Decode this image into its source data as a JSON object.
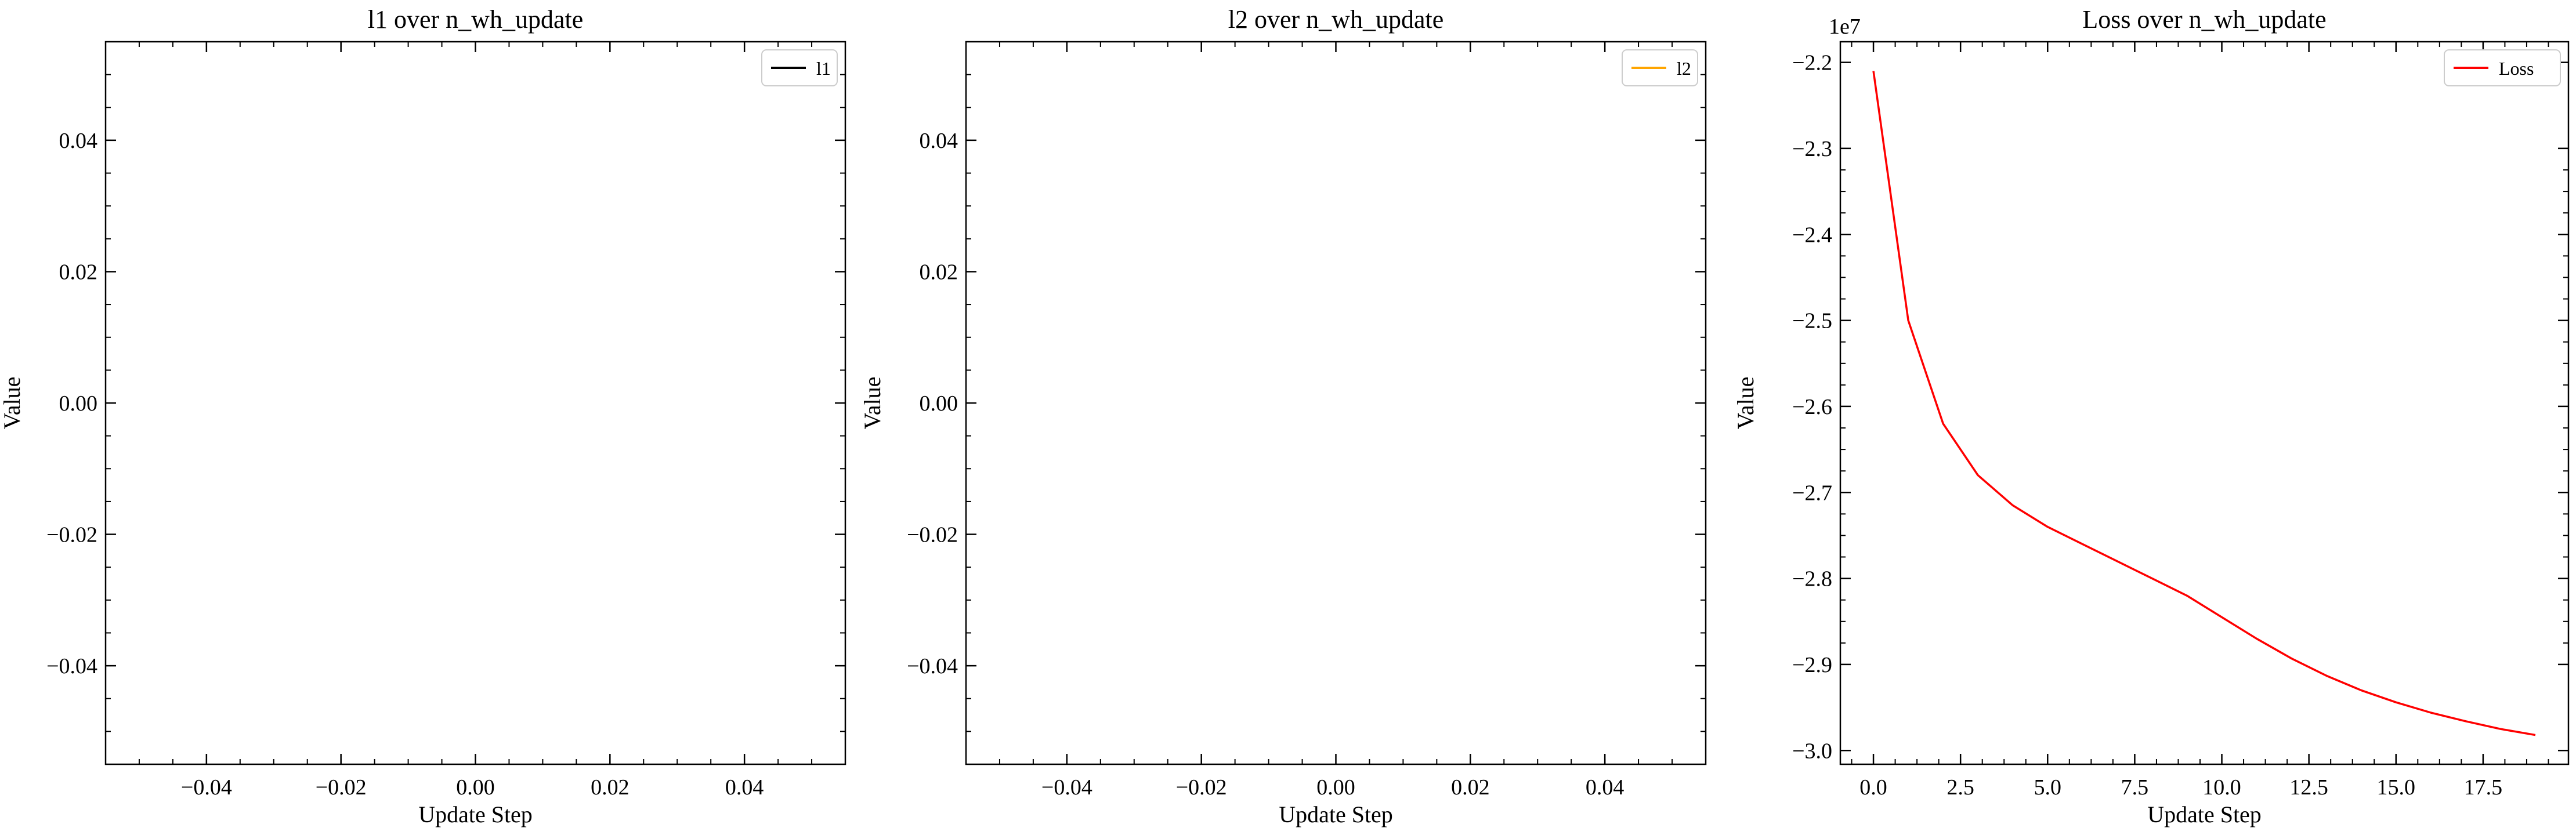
{
  "chart_data": [
    {
      "type": "line",
      "title": "l1 over n_wh_update",
      "xlabel": "Update Step",
      "ylabel": "Value",
      "xlim": [
        -0.055,
        0.055
      ],
      "ylim": [
        -0.055,
        0.055
      ],
      "x_ticks": [
        "−0.04",
        "−0.02",
        "0.00",
        "0.02",
        "0.04"
      ],
      "x_tick_values": [
        -0.04,
        -0.02,
        0.0,
        0.02,
        0.04
      ],
      "y_ticks": [
        "−0.04",
        "−0.02",
        "0.00",
        "0.02",
        "0.04"
      ],
      "y_tick_values": [
        -0.04,
        -0.02,
        0.0,
        0.02,
        0.04
      ],
      "offset_label": "",
      "legend_loc": "top-right",
      "series": [
        {
          "name": "l1",
          "color": "#000000",
          "x": [],
          "values": []
        }
      ]
    },
    {
      "type": "line",
      "title": "l2 over n_wh_update",
      "xlabel": "Update Step",
      "ylabel": "Value",
      "xlim": [
        -0.055,
        0.055
      ],
      "ylim": [
        -0.055,
        0.055
      ],
      "x_ticks": [
        "−0.04",
        "−0.02",
        "0.00",
        "0.02",
        "0.04"
      ],
      "x_tick_values": [
        -0.04,
        -0.02,
        0.0,
        0.02,
        0.04
      ],
      "y_ticks": [
        "−0.04",
        "−0.02",
        "0.00",
        "0.02",
        "0.04"
      ],
      "y_tick_values": [
        -0.04,
        -0.02,
        0.0,
        0.02,
        0.04
      ],
      "offset_label": "",
      "legend_loc": "top-right",
      "series": [
        {
          "name": "l2",
          "color": "#ffa500",
          "x": [],
          "values": []
        }
      ]
    },
    {
      "type": "line",
      "title": "Loss over n_wh_update",
      "xlabel": "Update Step",
      "ylabel": "Value",
      "xlim": [
        -0.95,
        19.95
      ],
      "ylim": [
        -3.016,
        -2.176
      ],
      "x_ticks": [
        "0.0",
        "2.5",
        "5.0",
        "7.5",
        "10.0",
        "12.5",
        "15.0",
        "17.5"
      ],
      "x_tick_values": [
        0,
        2.5,
        5,
        7.5,
        10,
        12.5,
        15,
        17.5
      ],
      "y_ticks": [
        "−2.2",
        "−2.3",
        "−2.4",
        "−2.5",
        "−2.6",
        "−2.7",
        "−2.8",
        "−2.9",
        "−3.0"
      ],
      "y_tick_values": [
        -2.2,
        -2.3,
        -2.4,
        -2.5,
        -2.6,
        -2.7,
        -2.8,
        -2.9,
        -3.0
      ],
      "offset_label": "1e7",
      "legend_loc": "top-right",
      "series": [
        {
          "name": "Loss",
          "color": "#ff0000",
          "x": [
            0,
            1,
            2,
            3,
            4,
            5,
            6,
            7,
            8,
            9,
            10,
            11,
            12,
            13,
            14,
            15,
            16,
            17,
            18,
            19
          ],
          "values": [
            -2.21,
            -2.5,
            -2.62,
            -2.68,
            -2.715,
            -2.74,
            -2.76,
            -2.78,
            -2.8,
            -2.82,
            -2.845,
            -2.87,
            -2.893,
            -2.913,
            -2.93,
            -2.944,
            -2.956,
            -2.966,
            -2.975,
            -2.982
          ]
        }
      ]
    }
  ]
}
